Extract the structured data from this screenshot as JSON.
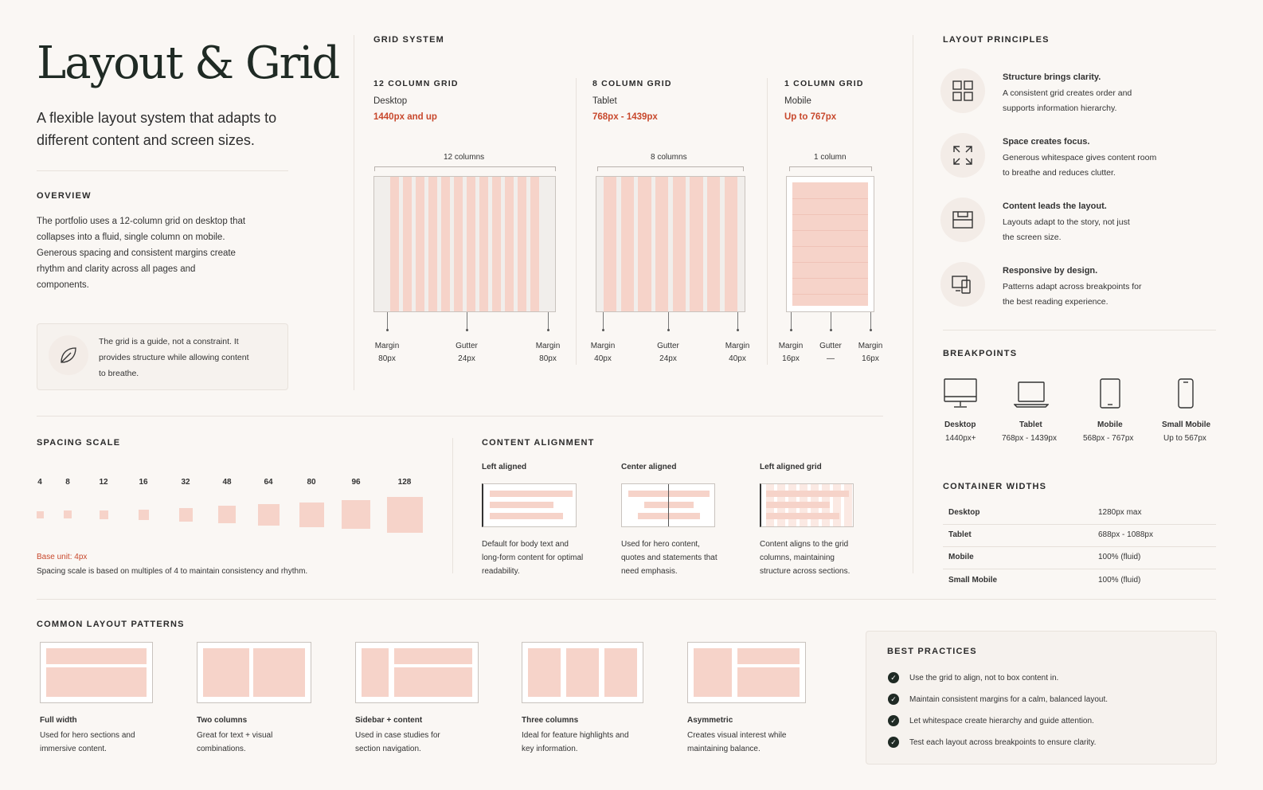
{
  "header": {
    "title": "Layout & Grid",
    "subtitle": "A flexible layout system that adapts to different content and screen sizes."
  },
  "overview": {
    "heading": "OVERVIEW",
    "text": "The portfolio uses a 12-column grid on desktop that collapses into a fluid, single column on mobile. Generous spacing and consistent margins create rhythm and clarity across all pages and components.",
    "quote": "The grid is a guide, not a constraint. It provides structure while allowing content to breathe."
  },
  "grid_system": {
    "heading": "GRID SYSTEM",
    "grids": [
      {
        "name": "12 COLUMN GRID",
        "device": "Desktop",
        "range": "1440px and up",
        "columns_label": "12 columns",
        "specs": [
          {
            "label": "Margin",
            "value": "80px"
          },
          {
            "label": "Gutter",
            "value": "24px"
          },
          {
            "label": "Margin",
            "value": "80px"
          }
        ]
      },
      {
        "name": "8 COLUMN GRID",
        "device": "Tablet",
        "range": "768px - 1439px",
        "columns_label": "8 columns",
        "specs": [
          {
            "label": "Margin",
            "value": "40px"
          },
          {
            "label": "Gutter",
            "value": "24px"
          },
          {
            "label": "Margin",
            "value": "40px"
          }
        ]
      },
      {
        "name": "1 COLUMN GRID",
        "device": "Mobile",
        "range": "Up to 767px",
        "columns_label": "1 column",
        "specs": [
          {
            "label": "Margin",
            "value": "16px"
          },
          {
            "label": "Gutter",
            "value": "—"
          },
          {
            "label": "Margin",
            "value": "16px"
          }
        ]
      }
    ]
  },
  "principles": {
    "heading": "LAYOUT PRINCIPLES",
    "items": [
      {
        "icon": "grid-icon",
        "title": "Structure brings clarity.",
        "text": "A consistent grid creates order and supports information hierarchy."
      },
      {
        "icon": "expand-icon",
        "title": "Space creates focus.",
        "text": "Generous whitespace gives content room to breathe and reduces clutter."
      },
      {
        "icon": "layout-icon",
        "title": "Content leads the layout.",
        "text": "Layouts adapt to the story, not just the screen size."
      },
      {
        "icon": "devices-icon",
        "title": "Responsive by design.",
        "text": "Patterns adapt across breakpoints for the best reading experience."
      }
    ]
  },
  "breakpoints": {
    "heading": "BREAKPOINTS",
    "items": [
      {
        "icon": "desktop-icon",
        "name": "Desktop",
        "range": "1440px+"
      },
      {
        "icon": "laptop-icon",
        "name": "Tablet",
        "range": "768px - 1439px"
      },
      {
        "icon": "tablet-icon",
        "name": "Mobile",
        "range": "568px - 767px"
      },
      {
        "icon": "phone-icon",
        "name": "Small Mobile",
        "range": "Up to 567px"
      }
    ]
  },
  "container_widths": {
    "heading": "CONTAINER WIDTHS",
    "rows": [
      {
        "name": "Desktop",
        "value": "1280px max"
      },
      {
        "name": "Tablet",
        "value": "688px - 1088px"
      },
      {
        "name": "Mobile",
        "value": "100% (fluid)"
      },
      {
        "name": "Small Mobile",
        "value": "100% (fluid)"
      }
    ]
  },
  "spacing": {
    "heading": "SPACING SCALE",
    "values": [
      "4",
      "8",
      "12",
      "16",
      "32",
      "48",
      "64",
      "80",
      "96",
      "128"
    ],
    "base": "Base unit: 4px",
    "note": "Spacing scale is based on multiples of 4 to maintain consistency and rhythm."
  },
  "alignment": {
    "heading": "CONTENT ALIGNMENT",
    "items": [
      {
        "title": "Left aligned",
        "text": "Default for body text and long-form content for optimal readability."
      },
      {
        "title": "Center aligned",
        "text": "Used for hero content, quotes and statements that need emphasis."
      },
      {
        "title": "Left aligned grid",
        "text": "Content aligns to the grid columns, maintaining structure across sections."
      }
    ]
  },
  "patterns": {
    "heading": "COMMON LAYOUT PATTERNS",
    "items": [
      {
        "title": "Full width",
        "text": "Used for hero sections and immersive content."
      },
      {
        "title": "Two columns",
        "text": "Great for text + visual combinations."
      },
      {
        "title": "Sidebar + content",
        "text": "Used in case studies for section navigation."
      },
      {
        "title": "Three columns",
        "text": "Ideal for feature highlights and key information."
      },
      {
        "title": "Asymmetric",
        "text": "Creates visual interest while maintaining balance."
      }
    ]
  },
  "best_practices": {
    "heading": "BEST PRACTICES",
    "items": [
      "Use the grid to align, not to box content in.",
      "Maintain consistent margins for a calm, balanced layout.",
      "Let whitespace create hierarchy and guide attention.",
      "Test each layout across breakpoints to ensure clarity."
    ]
  },
  "colors": {
    "accent": "#c8482c",
    "pink": "#f6d3c9",
    "ink": "#1f2a24"
  }
}
